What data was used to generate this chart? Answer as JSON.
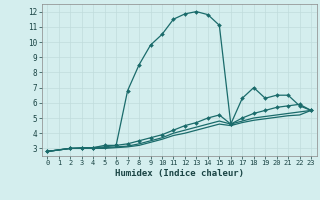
{
  "xlabel": "Humidex (Indice chaleur)",
  "bg_color": "#d4eeee",
  "line_color": "#1a6b6b",
  "grid_color": "#c0dcdc",
  "xlim": [
    -0.5,
    23.5
  ],
  "ylim": [
    2.5,
    12.5
  ],
  "xticks": [
    0,
    1,
    2,
    3,
    4,
    5,
    6,
    7,
    8,
    9,
    10,
    11,
    12,
    13,
    14,
    15,
    16,
    17,
    18,
    19,
    20,
    21,
    22,
    23
  ],
  "yticks": [
    3,
    4,
    5,
    6,
    7,
    8,
    9,
    10,
    11,
    12
  ],
  "lines": [
    {
      "x": [
        0,
        2,
        3,
        4,
        5,
        6,
        7,
        8,
        9,
        10,
        11,
        12,
        13,
        14,
        15,
        16,
        17,
        18,
        19,
        20,
        21,
        22,
        23
      ],
      "y": [
        2.8,
        3.0,
        3.05,
        3.05,
        3.2,
        3.2,
        6.8,
        8.5,
        9.8,
        10.5,
        11.5,
        11.85,
        12.0,
        11.8,
        11.1,
        4.6,
        6.3,
        7.0,
        6.3,
        6.5,
        6.5,
        5.8,
        5.5
      ],
      "marker": true
    },
    {
      "x": [
        0,
        2,
        3,
        4,
        5,
        6,
        7,
        8,
        9,
        10,
        11,
        12,
        13,
        14,
        15,
        16,
        17,
        18,
        19,
        20,
        21,
        22,
        23
      ],
      "y": [
        2.8,
        3.0,
        3.0,
        3.05,
        3.1,
        3.2,
        3.3,
        3.5,
        3.7,
        3.9,
        4.2,
        4.5,
        4.7,
        5.0,
        5.2,
        4.6,
        5.0,
        5.3,
        5.5,
        5.7,
        5.8,
        5.9,
        5.5
      ],
      "marker": true
    },
    {
      "x": [
        0,
        2,
        3,
        4,
        5,
        6,
        7,
        8,
        9,
        10,
        11,
        12,
        13,
        14,
        15,
        16,
        17,
        18,
        19,
        20,
        21,
        22,
        23
      ],
      "y": [
        2.8,
        3.0,
        3.0,
        3.0,
        3.05,
        3.1,
        3.15,
        3.3,
        3.5,
        3.7,
        4.0,
        4.2,
        4.4,
        4.6,
        4.8,
        4.6,
        4.8,
        5.0,
        5.1,
        5.2,
        5.3,
        5.4,
        5.5
      ],
      "marker": false
    },
    {
      "x": [
        0,
        2,
        3,
        4,
        5,
        6,
        7,
        8,
        9,
        10,
        11,
        12,
        13,
        14,
        15,
        16,
        17,
        18,
        19,
        20,
        21,
        22,
        23
      ],
      "y": [
        2.8,
        3.0,
        3.0,
        3.0,
        3.0,
        3.05,
        3.1,
        3.2,
        3.4,
        3.6,
        3.85,
        4.0,
        4.2,
        4.4,
        4.6,
        4.5,
        4.7,
        4.85,
        4.95,
        5.05,
        5.15,
        5.2,
        5.5
      ],
      "marker": false
    }
  ]
}
